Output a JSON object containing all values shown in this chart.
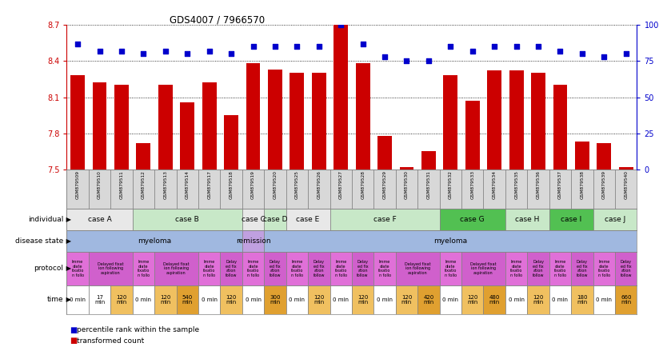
{
  "title": "GDS4007 / 7966570",
  "gsm_labels": [
    "GSM879509",
    "GSM879510",
    "GSM879511",
    "GSM879512",
    "GSM879513",
    "GSM879514",
    "GSM879517",
    "GSM879518",
    "GSM879519",
    "GSM879520",
    "GSM879525",
    "GSM879526",
    "GSM879527",
    "GSM879528",
    "GSM879529",
    "GSM879530",
    "GSM879531",
    "GSM879532",
    "GSM879533",
    "GSM879534",
    "GSM879535",
    "GSM879536",
    "GSM879537",
    "GSM879538",
    "GSM879539",
    "GSM879540"
  ],
  "bar_values": [
    8.28,
    8.22,
    8.2,
    7.72,
    8.2,
    8.06,
    8.22,
    7.95,
    8.38,
    8.33,
    8.3,
    8.3,
    8.7,
    8.38,
    7.78,
    7.52,
    7.65,
    8.28,
    8.07,
    8.32,
    8.32,
    8.3,
    8.2,
    7.73,
    7.72,
    7.52
  ],
  "dot_values": [
    87,
    82,
    82,
    80,
    82,
    80,
    82,
    80,
    85,
    85,
    85,
    85,
    100,
    87,
    78,
    75,
    75,
    85,
    82,
    85,
    85,
    85,
    82,
    80,
    78,
    80
  ],
  "bar_color": "#cc0000",
  "dot_color": "#0000cc",
  "ymin": 7.5,
  "ymax": 8.7,
  "y_ticks": [
    7.5,
    7.8,
    8.1,
    8.4,
    8.7
  ],
  "y2min": 0,
  "y2max": 100,
  "y2_ticks": [
    0,
    25,
    50,
    75,
    100
  ],
  "individual_cases": [
    {
      "label": "case A",
      "start": 0,
      "end": 3,
      "color": "#e8e8e8"
    },
    {
      "label": "case B",
      "start": 3,
      "end": 8,
      "color": "#c8e8c8"
    },
    {
      "label": "case C",
      "start": 8,
      "end": 9,
      "color": "#e8e8e8"
    },
    {
      "label": "case D",
      "start": 9,
      "end": 10,
      "color": "#c8e8c8"
    },
    {
      "label": "case E",
      "start": 10,
      "end": 12,
      "color": "#e8e8e8"
    },
    {
      "label": "case F",
      "start": 12,
      "end": 17,
      "color": "#c8e8c8"
    },
    {
      "label": "case G",
      "start": 17,
      "end": 20,
      "color": "#52c052"
    },
    {
      "label": "case H",
      "start": 20,
      "end": 22,
      "color": "#c8e8c8"
    },
    {
      "label": "case I",
      "start": 22,
      "end": 24,
      "color": "#52c052"
    },
    {
      "label": "case J",
      "start": 24,
      "end": 26,
      "color": "#c8e8c8"
    }
  ],
  "disease_states": [
    {
      "label": "myeloma",
      "start": 0,
      "end": 8,
      "color": "#a0b8e0"
    },
    {
      "label": "remission",
      "start": 8,
      "end": 9,
      "color": "#c0a0e0"
    },
    {
      "label": "myeloma",
      "start": 9,
      "end": 26,
      "color": "#a0b8e0"
    }
  ],
  "protocols": [
    {
      "label": "Imme\ndiate\nfixatio\nn follo",
      "start": 0,
      "end": 1,
      "color": "#e070d8"
    },
    {
      "label": "Delayed fixat\nion following\naspiration",
      "start": 1,
      "end": 3,
      "color": "#d060cc"
    },
    {
      "label": "Imme\ndiate\nfixatio\nn follo",
      "start": 3,
      "end": 4,
      "color": "#e070d8"
    },
    {
      "label": "Delayed fixat\nion following\naspiration",
      "start": 4,
      "end": 6,
      "color": "#d060cc"
    },
    {
      "label": "Imme\ndiate\nfixatio\nn follo",
      "start": 6,
      "end": 7,
      "color": "#e070d8"
    },
    {
      "label": "Delay\ned fix\nation\nfollow",
      "start": 7,
      "end": 8,
      "color": "#d060cc"
    },
    {
      "label": "Imme\ndiate\nfixatio\nn follo",
      "start": 8,
      "end": 9,
      "color": "#e070d8"
    },
    {
      "label": "Delay\ned fix\nation\nfollow",
      "start": 9,
      "end": 10,
      "color": "#d060cc"
    },
    {
      "label": "Imme\ndiate\nfixatio\nn follo",
      "start": 10,
      "end": 11,
      "color": "#e070d8"
    },
    {
      "label": "Delay\ned fix\nation\nfollow",
      "start": 11,
      "end": 12,
      "color": "#d060cc"
    },
    {
      "label": "Imme\ndiate\nfixatio\nn follo",
      "start": 12,
      "end": 13,
      "color": "#e070d8"
    },
    {
      "label": "Delay\ned fix\nation\nfollow",
      "start": 13,
      "end": 14,
      "color": "#d060cc"
    },
    {
      "label": "Imme\ndiate\nfixatio\nn follo",
      "start": 14,
      "end": 15,
      "color": "#e070d8"
    },
    {
      "label": "Delayed fixat\nion following\naspiration",
      "start": 15,
      "end": 17,
      "color": "#d060cc"
    },
    {
      "label": "Imme\ndiate\nfixatio\nn follo",
      "start": 17,
      "end": 18,
      "color": "#e070d8"
    },
    {
      "label": "Delayed fixat\nion following\naspiration",
      "start": 18,
      "end": 20,
      "color": "#d060cc"
    },
    {
      "label": "Imme\ndiate\nfixatio\nn follo",
      "start": 20,
      "end": 21,
      "color": "#e070d8"
    },
    {
      "label": "Delay\ned fix\nation\nfollow",
      "start": 21,
      "end": 22,
      "color": "#d060cc"
    },
    {
      "label": "Imme\ndiate\nfixatio\nn follo",
      "start": 22,
      "end": 23,
      "color": "#e070d8"
    },
    {
      "label": "Delay\ned fix\nation\nfollow",
      "start": 23,
      "end": 24,
      "color": "#d060cc"
    },
    {
      "label": "Imme\ndiate\nfixatio\nn follo",
      "start": 24,
      "end": 25,
      "color": "#e070d8"
    },
    {
      "label": "Delay\ned fix\nation\nfollow",
      "start": 25,
      "end": 26,
      "color": "#d060cc"
    }
  ],
  "times": [
    {
      "label": "0 min",
      "start": 0,
      "end": 1,
      "color": "#ffffff"
    },
    {
      "label": "17\nmin",
      "start": 1,
      "end": 2,
      "color": "#ffffff"
    },
    {
      "label": "120\nmin",
      "start": 2,
      "end": 3,
      "color": "#f0c060"
    },
    {
      "label": "0 min",
      "start": 3,
      "end": 4,
      "color": "#ffffff"
    },
    {
      "label": "120\nmin",
      "start": 4,
      "end": 5,
      "color": "#f0c060"
    },
    {
      "label": "540\nmin",
      "start": 5,
      "end": 6,
      "color": "#e0a030"
    },
    {
      "label": "0 min",
      "start": 6,
      "end": 7,
      "color": "#ffffff"
    },
    {
      "label": "120\nmin",
      "start": 7,
      "end": 8,
      "color": "#f0c060"
    },
    {
      "label": "0 min",
      "start": 8,
      "end": 9,
      "color": "#ffffff"
    },
    {
      "label": "300\nmin",
      "start": 9,
      "end": 10,
      "color": "#e0a030"
    },
    {
      "label": "0 min",
      "start": 10,
      "end": 11,
      "color": "#ffffff"
    },
    {
      "label": "120\nmin",
      "start": 11,
      "end": 12,
      "color": "#f0c060"
    },
    {
      "label": "0 min",
      "start": 12,
      "end": 13,
      "color": "#ffffff"
    },
    {
      "label": "120\nmin",
      "start": 13,
      "end": 14,
      "color": "#f0c060"
    },
    {
      "label": "0 min",
      "start": 14,
      "end": 15,
      "color": "#ffffff"
    },
    {
      "label": "120\nmin",
      "start": 15,
      "end": 16,
      "color": "#f0c060"
    },
    {
      "label": "420\nmin",
      "start": 16,
      "end": 17,
      "color": "#e0a030"
    },
    {
      "label": "0 min",
      "start": 17,
      "end": 18,
      "color": "#ffffff"
    },
    {
      "label": "120\nmin",
      "start": 18,
      "end": 19,
      "color": "#f0c060"
    },
    {
      "label": "480\nmin",
      "start": 19,
      "end": 20,
      "color": "#e0a030"
    },
    {
      "label": "0 min",
      "start": 20,
      "end": 21,
      "color": "#ffffff"
    },
    {
      "label": "120\nmin",
      "start": 21,
      "end": 22,
      "color": "#f0c060"
    },
    {
      "label": "0 min",
      "start": 22,
      "end": 23,
      "color": "#ffffff"
    },
    {
      "label": "180\nmin",
      "start": 23,
      "end": 24,
      "color": "#f0c060"
    },
    {
      "label": "0 min",
      "start": 24,
      "end": 25,
      "color": "#ffffff"
    },
    {
      "label": "660\nmin",
      "start": 25,
      "end": 26,
      "color": "#e0a030"
    }
  ],
  "row_labels": [
    "individual",
    "disease state",
    "protocol",
    "time"
  ],
  "legend_bar_label": "transformed count",
  "legend_dot_label": "percentile rank within the sample",
  "bg_color": "#ffffff"
}
